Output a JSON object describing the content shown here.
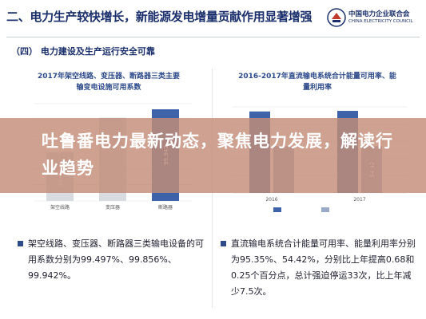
{
  "header": {
    "title": "二、电力生产较快增长，新能源发电增量贡献作用显著增强",
    "logo_cn": "中国电力企业联合会",
    "logo_en": "CHINA ELECTRICITY COUNCIL"
  },
  "section": {
    "title": "（四）   电力建设及生产运行安全可靠"
  },
  "banner": {
    "text": "吐鲁番电力最新动态，聚焦电力发展，解读行业趋势"
  },
  "left_chart": {
    "title_line1": "2017年架空线路、变压器、断路器三类主要",
    "title_line2": "输变电设施可用系数",
    "categories": [
      "架空线路",
      "变压器",
      "断路器"
    ],
    "value_labels": [
      "99.497",
      "",
      "99.942"
    ],
    "values": [
      99.497,
      99.856,
      99.942
    ],
    "colors": [
      "#d8dbe0",
      "#d8dbe0",
      "#3f63a8"
    ]
  },
  "right_chart": {
    "title_line1": "2016-2017年直流输电系统合计能量可用率、能",
    "title_line2": "量利用率",
    "years": [
      "2016",
      "2017"
    ],
    "value_labels": [
      "",
      "54.42"
    ],
    "legend": [
      "",
      ""
    ]
  },
  "bullets": {
    "left": "架空线路、变压器、断路器三类输电设备的可用系数分别为99.497%、99.856%、99.942%。",
    "right": "直流输电系统合计能量可用率、能量利用率分别为95.35%、54.42%，分别比上年提高0.68和0.25个百分点，总计强迫停运33次，比上年减少7.5次。"
  },
  "chart_data": [
    {
      "type": "bar",
      "title": "2017年架空线路、变压器、断路器三类主要输变电设施可用系数",
      "categories": [
        "架空线路",
        "变压器",
        "断路器"
      ],
      "values": [
        99.497,
        99.856,
        99.942
      ],
      "xlabel": "",
      "ylabel": ""
    },
    {
      "type": "bar",
      "title": "2016-2017年直流输电系统合计能量可用率、能量利用率",
      "categories": [
        "2016",
        "2017"
      ],
      "series": [
        {
          "values": [
            94.67,
            95.35
          ]
        },
        {
          "values": [
            54.17,
            54.42
          ]
        }
      ],
      "xlabel": "",
      "ylabel": ""
    }
  ]
}
